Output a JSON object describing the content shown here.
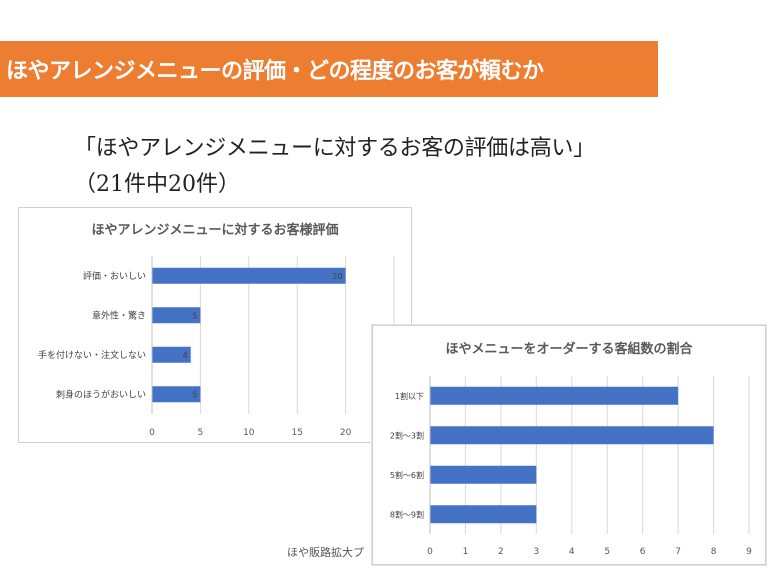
{
  "slide": {
    "title": "ほやアレンジメニューの評価・どの程度のお客が頼むか",
    "subheading": "「ほやアレンジメニューに対するお客の評価は高い」",
    "subcount": "（21件中20件）",
    "footer": "ほや販路拡大プ",
    "accent_color": "#ed7d31"
  },
  "chart_data": [
    {
      "type": "bar",
      "orientation": "horizontal",
      "title": "ほやアレンジメニューに対するお客様評価",
      "categories": [
        "評価・おいしい",
        "意外性・驚き",
        "手を付けない・注文しない",
        "刺身のほうがおいしい"
      ],
      "values": [
        20,
        5,
        4,
        5
      ],
      "data_labels": [
        "20",
        "5",
        "4",
        "5"
      ],
      "xlim": [
        0,
        25
      ],
      "xticks": [
        "0",
        "5",
        "10",
        "15",
        "20"
      ],
      "grid": true,
      "bar_color": "#4472c4"
    },
    {
      "type": "bar",
      "orientation": "horizontal",
      "title": "ほやメニューをオーダーする客組数の割合",
      "categories": [
        "1割以下",
        "2割～3割",
        "5割～6割",
        "8割～9割"
      ],
      "values": [
        7,
        8,
        3,
        3
      ],
      "xlim": [
        0,
        9
      ],
      "xticks": [
        "0",
        "1",
        "2",
        "3",
        "4",
        "5",
        "6",
        "7",
        "8",
        "9"
      ],
      "grid": true,
      "bar_color": "#4472c4"
    }
  ]
}
